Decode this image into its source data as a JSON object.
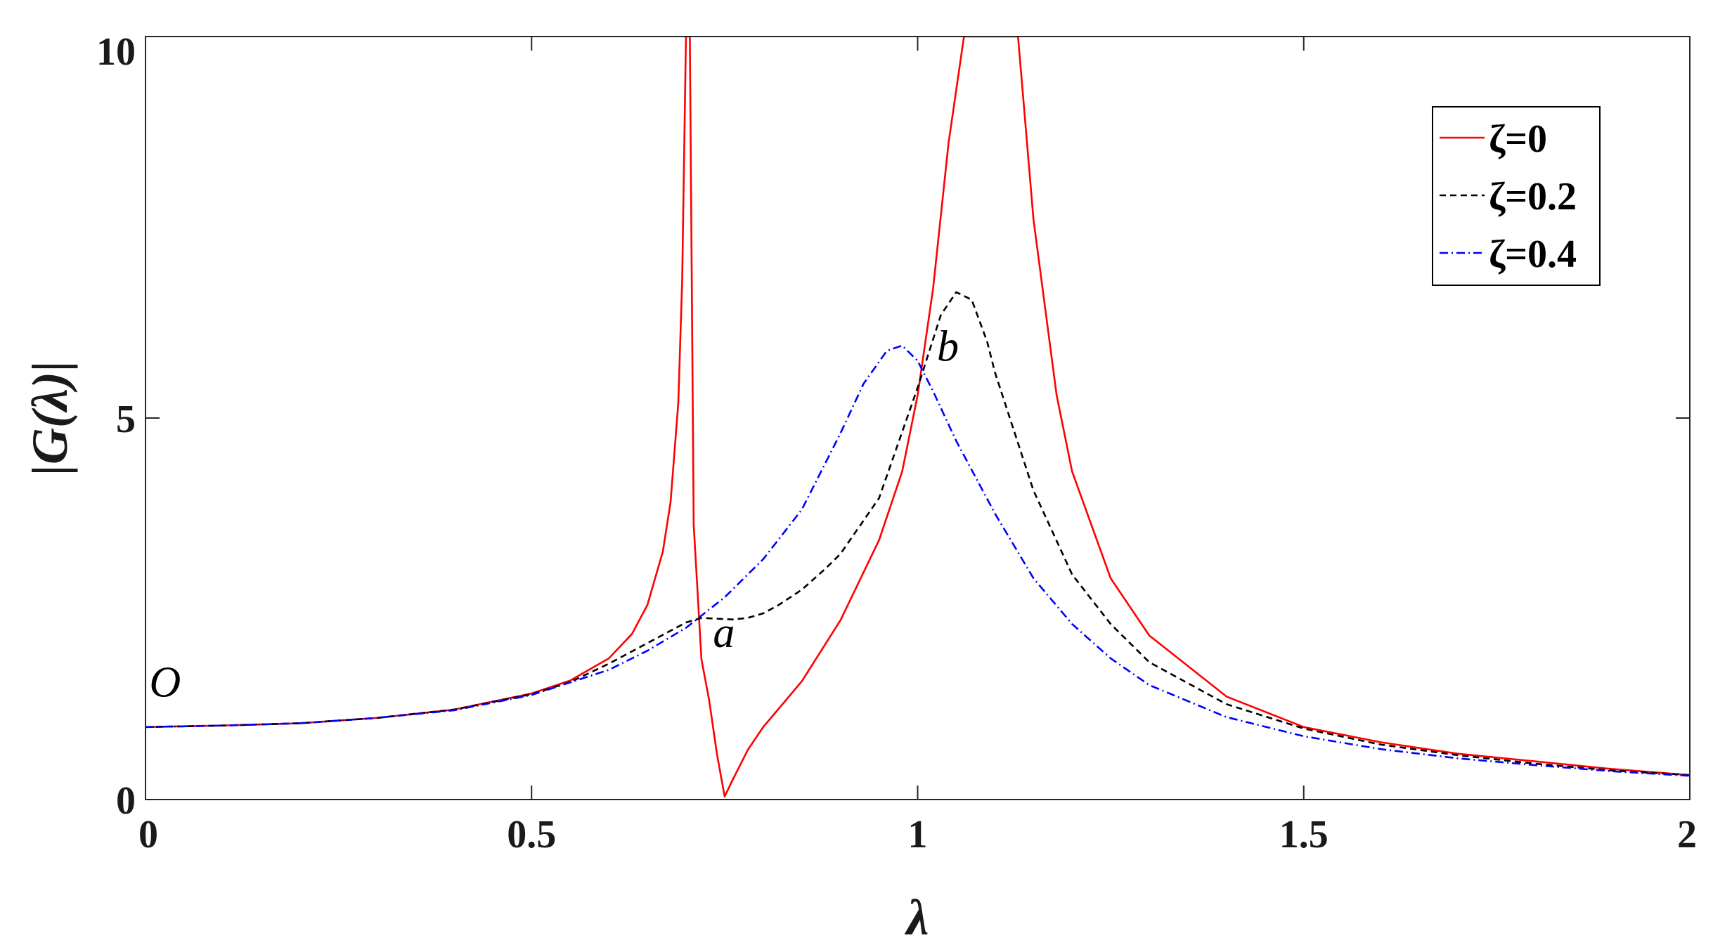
{
  "chart_data": {
    "type": "line",
    "xlabel": "λ",
    "ylabel": "|G(λ)|",
    "xlim": [
      0,
      2
    ],
    "ylim": [
      0,
      10
    ],
    "xticks": [
      0,
      0.5,
      1,
      1.5,
      2
    ],
    "xtick_labels": [
      "0",
      "0.5",
      "1",
      "1.5",
      "2"
    ],
    "yticks": [
      0,
      5,
      10
    ],
    "ytick_labels": [
      "0",
      "5",
      "10"
    ],
    "grid": false,
    "legend_position": "top-right",
    "colors": {
      "zeta0": "#ff0000",
      "zeta02": "#000000",
      "zeta04": "#0000ff"
    },
    "series": [
      {
        "name": "ζ=0",
        "style": "solid",
        "x": [
          0,
          0.1,
          0.2,
          0.3,
          0.4,
          0.5,
          0.55,
          0.6,
          0.63,
          0.65,
          0.67,
          0.68,
          0.69,
          0.695,
          0.7,
          0.705,
          0.71,
          0.72,
          0.73,
          0.74,
          0.75,
          0.76,
          0.78,
          0.8,
          0.85,
          0.9,
          0.95,
          0.98,
          1.0,
          1.02,
          1.04,
          1.06,
          1.07,
          1.08,
          1.1,
          1.12,
          1.13,
          1.15,
          1.18,
          1.2,
          1.25,
          1.3,
          1.4,
          1.5,
          1.6,
          1.7,
          1.8,
          1.9,
          2.0
        ],
        "y": [
          0.95,
          0.97,
          1.0,
          1.07,
          1.18,
          1.39,
          1.56,
          1.85,
          2.17,
          2.55,
          3.25,
          3.9,
          5.2,
          6.8,
          10.0,
          10.0,
          3.6,
          1.84,
          1.3,
          0.6,
          0.04,
          0.25,
          0.65,
          0.95,
          1.55,
          2.35,
          3.4,
          4.3,
          5.3,
          6.7,
          8.6,
          10.0,
          10.0,
          10.0,
          10.0,
          10.0,
          10.0,
          7.6,
          5.3,
          4.3,
          2.9,
          2.15,
          1.35,
          0.95,
          0.75,
          0.6,
          0.5,
          0.4,
          0.32
        ]
      },
      {
        "name": "ζ=0.2",
        "style": "dashed",
        "x": [
          0,
          0.1,
          0.2,
          0.3,
          0.4,
          0.5,
          0.55,
          0.6,
          0.65,
          0.7,
          0.72,
          0.74,
          0.76,
          0.78,
          0.8,
          0.82,
          0.85,
          0.88,
          0.9,
          0.95,
          1.0,
          1.03,
          1.05,
          1.07,
          1.09,
          1.1,
          1.15,
          1.2,
          1.25,
          1.3,
          1.4,
          1.5,
          1.6,
          1.7,
          1.8,
          1.9,
          2.0
        ],
        "y": [
          0.95,
          0.97,
          1.0,
          1.07,
          1.18,
          1.38,
          1.54,
          1.78,
          2.05,
          2.32,
          2.38,
          2.37,
          2.36,
          2.38,
          2.44,
          2.55,
          2.75,
          3.02,
          3.22,
          3.95,
          5.4,
          6.35,
          6.65,
          6.55,
          6.0,
          5.6,
          4.05,
          2.95,
          2.3,
          1.8,
          1.25,
          0.93,
          0.72,
          0.58,
          0.47,
          0.38,
          0.32
        ]
      },
      {
        "name": "ζ=0.4",
        "style": "dashdot",
        "x": [
          0,
          0.1,
          0.2,
          0.3,
          0.4,
          0.5,
          0.6,
          0.65,
          0.7,
          0.75,
          0.8,
          0.85,
          0.9,
          0.93,
          0.96,
          0.98,
          1.0,
          1.02,
          1.05,
          1.1,
          1.15,
          1.2,
          1.25,
          1.3,
          1.4,
          1.5,
          1.6,
          1.7,
          1.8,
          1.9,
          2.0
        ],
        "y": [
          0.95,
          0.97,
          1.0,
          1.07,
          1.17,
          1.37,
          1.7,
          1.95,
          2.25,
          2.65,
          3.15,
          3.8,
          4.8,
          5.45,
          5.88,
          5.95,
          5.75,
          5.35,
          4.7,
          3.75,
          2.9,
          2.3,
          1.85,
          1.5,
          1.08,
          0.83,
          0.66,
          0.54,
          0.45,
          0.37,
          0.31
        ]
      }
    ],
    "annotations": [
      {
        "text": "O",
        "x": 0.005,
        "y": 1.35
      },
      {
        "text": "a",
        "x": 0.735,
        "y": 2.0
      },
      {
        "text": "b",
        "x": 1.025,
        "y": 5.75
      }
    ]
  }
}
